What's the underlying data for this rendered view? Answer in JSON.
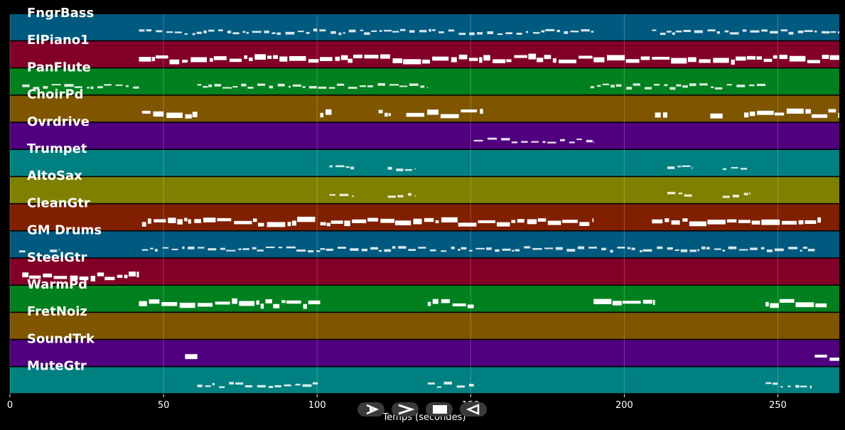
{
  "xaxis": {
    "label": "Temps (secondes)",
    "ticks": [
      0,
      50,
      100,
      150,
      200,
      250
    ],
    "range": [
      0,
      270
    ]
  },
  "tracks": [
    {
      "name": "FngrBass",
      "color": "#005a80",
      "style": "thin",
      "segments": [
        [
          42,
          113
        ],
        [
          114,
          190
        ],
        [
          209,
          270
        ]
      ]
    },
    {
      "name": "ElPiano1",
      "color": "#820028",
      "style": "block",
      "segments": [
        [
          42,
          110
        ],
        [
          110,
          190
        ],
        [
          190,
          209
        ],
        [
          209,
          270
        ]
      ]
    },
    {
      "name": "PanFlute",
      "color": "#00801e",
      "style": "thin",
      "segments": [
        [
          4,
          42
        ],
        [
          61,
          136
        ],
        [
          189,
          246
        ]
      ]
    },
    {
      "name": "ChoirPd",
      "color": "#7f5500",
      "style": "block",
      "segments": [
        [
          43,
          61
        ],
        [
          101,
          105
        ],
        [
          120,
          124
        ],
        [
          129,
          154
        ],
        [
          210,
          214
        ],
        [
          228,
          232
        ],
        [
          239,
          270
        ]
      ]
    },
    {
      "name": "Ovrdrive",
      "color": "#50007f",
      "style": "thin",
      "segments": [
        [
          151,
          190
        ]
      ]
    },
    {
      "name": "Trumpet",
      "color": "#008080",
      "style": "short",
      "segments": [
        [
          104,
          112
        ],
        [
          123,
          132
        ],
        [
          214,
          222
        ],
        [
          232,
          241
        ]
      ]
    },
    {
      "name": "AltoSax",
      "color": "#808000",
      "style": "short",
      "segments": [
        [
          104,
          112
        ],
        [
          123,
          132
        ],
        [
          214,
          222
        ],
        [
          232,
          241
        ]
      ]
    },
    {
      "name": "CleanGtr",
      "color": "#802000",
      "style": "block",
      "segments": [
        [
          43,
          59
        ],
        [
          60,
          100
        ],
        [
          101,
          190
        ],
        [
          209,
          264
        ]
      ]
    },
    {
      "name": "GM Drums",
      "color": "#005a80",
      "style": "thin",
      "segments": [
        [
          3,
          5
        ],
        [
          13,
          16
        ],
        [
          43,
          101
        ],
        [
          101,
          262
        ]
      ]
    },
    {
      "name": "SteelGtr",
      "color": "#820028",
      "style": "block",
      "segments": [
        [
          4,
          42
        ]
      ]
    },
    {
      "name": "WarmPd",
      "color": "#00801e",
      "style": "block",
      "segments": [
        [
          42,
          101
        ],
        [
          136,
          151
        ],
        [
          190,
          210
        ],
        [
          246,
          266
        ]
      ]
    },
    {
      "name": "FretNoiz",
      "color": "#7f5500",
      "style": "none",
      "segments": []
    },
    {
      "name": "SoundTrk",
      "color": "#50007f",
      "style": "block",
      "segments": [
        [
          57,
          61
        ],
        [
          262,
          270
        ]
      ]
    },
    {
      "name": "MuteGtr",
      "color": "#008080",
      "style": "thin",
      "segments": [
        [
          61,
          101
        ],
        [
          136,
          151
        ],
        [
          246,
          261
        ]
      ]
    }
  ],
  "controls": [
    {
      "name": "play-button",
      "icon": "play-outline"
    },
    {
      "name": "forward-button",
      "icon": "chevron-right"
    },
    {
      "name": "stop-button",
      "icon": "stop-square"
    },
    {
      "name": "back-button",
      "icon": "play-reverse"
    }
  ]
}
